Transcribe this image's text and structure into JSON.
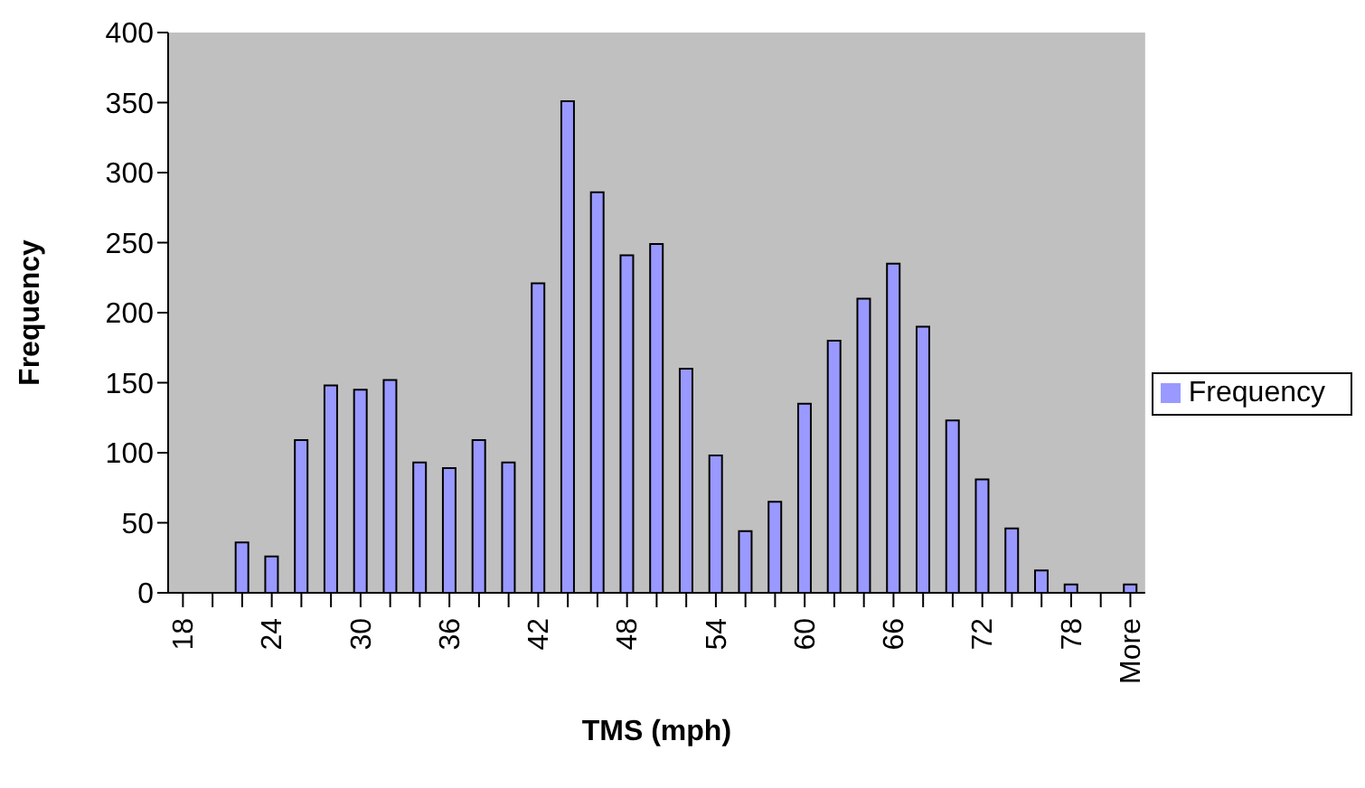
{
  "chart_data": {
    "type": "bar",
    "xlabel": "TMS (mph)",
    "ylabel": "Frequency",
    "categories": [
      "18",
      null,
      null,
      "24",
      null,
      null,
      "30",
      null,
      null,
      "36",
      null,
      null,
      "42",
      null,
      null,
      "48",
      null,
      null,
      "54",
      null,
      null,
      "60",
      null,
      null,
      "66",
      null,
      null,
      "72",
      null,
      null,
      "78",
      null,
      "More"
    ],
    "series": [
      {
        "name": "Frequency",
        "color": "#9999ff",
        "values": [
          0,
          0,
          36,
          26,
          109,
          148,
          145,
          152,
          93,
          89,
          109,
          93,
          221,
          351,
          286,
          241,
          249,
          160,
          98,
          44,
          65,
          135,
          180,
          210,
          235,
          190,
          123,
          81,
          46,
          16,
          6,
          0,
          6
        ]
      }
    ],
    "ylim": [
      0,
      400
    ],
    "yticks": [
      0,
      50,
      100,
      150,
      200,
      250,
      300,
      350,
      400
    ],
    "grid": false,
    "legend": "right"
  }
}
